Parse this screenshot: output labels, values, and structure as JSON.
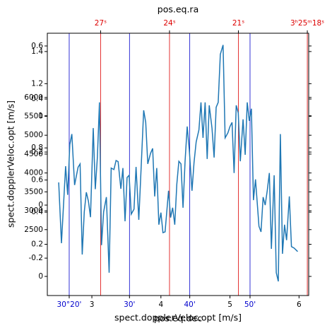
{
  "chart_data": {
    "type": "line",
    "title": "pos.eq.ra",
    "xlabel": "spect.dopplerVeloc.opt [m/s]",
    "xlabel2": "pos.eq.dec",
    "ylabel": "spect.dopplerVeloc.opt [m/s]",
    "color": "#1f77b4",
    "x": [
      2.52,
      2.56,
      2.62,
      2.65,
      2.68,
      2.71,
      2.75,
      2.8,
      2.83,
      2.86,
      2.89,
      2.92,
      2.95,
      2.98,
      3.02,
      3.05,
      3.08,
      3.11,
      3.14,
      3.17,
      3.21,
      3.25,
      3.28,
      3.32,
      3.35,
      3.38,
      3.42,
      3.45,
      3.48,
      3.51,
      3.54,
      3.57,
      3.61,
      3.64,
      3.68,
      3.72,
      3.75,
      3.78,
      3.81,
      3.85,
      3.88,
      3.91,
      3.94,
      3.97,
      4.0,
      4.03,
      4.06,
      4.11,
      4.14,
      4.17,
      4.2,
      4.23,
      4.26,
      4.29,
      4.32,
      4.35,
      4.38,
      4.41,
      4.45,
      4.48,
      4.51,
      4.55,
      4.58,
      4.61,
      4.64,
      4.67,
      4.7,
      4.74,
      4.77,
      4.8,
      4.83,
      4.86,
      4.9,
      4.93,
      4.97,
      5.0,
      5.03,
      5.06,
      5.09,
      5.12,
      5.15,
      5.19,
      5.22,
      5.25,
      5.28,
      5.31,
      5.34,
      5.37,
      5.42,
      5.45,
      5.48,
      5.51,
      5.54,
      5.57,
      5.6,
      5.64,
      5.67,
      5.7,
      5.73,
      5.76,
      5.79,
      5.82,
      5.86,
      5.89,
      5.93,
      5.98
    ],
    "values": [
      3750,
      2140,
      4180,
      3420,
      4750,
      5030,
      3680,
      4150,
      4240,
      1840,
      2970,
      3490,
      3250,
      2830,
      5190,
      3570,
      4430,
      5870,
      2090,
      2970,
      3360,
      1360,
      4130,
      4090,
      4330,
      4300,
      3580,
      4130,
      2720,
      3880,
      3940,
      2910,
      3040,
      4160,
      2760,
      4390,
      5660,
      5340,
      4240,
      4520,
      4650,
      3380,
      4130,
      2630,
      2950,
      2420,
      2440,
      3530,
      2820,
      3080,
      2630,
      3700,
      4310,
      4240,
      3080,
      4310,
      5230,
      4630,
      3530,
      4280,
      4820,
      5140,
      5870,
      4930,
      5870,
      4370,
      5790,
      5190,
      4410,
      5740,
      5870,
      7140,
      7390,
      4930,
      5060,
      5230,
      5340,
      4000,
      5790,
      5590,
      4310,
      5420,
      4480,
      5870,
      5380,
      5700,
      3280,
      3830,
      2590,
      2440,
      3360,
      3150,
      3530,
      4000,
      1990,
      3940,
      1360,
      1130,
      5030,
      1860,
      2630,
      2220,
      3380,
      2050,
      2010,
      1920
    ],
    "xlim": [
      2.355,
      6.14
    ],
    "xticks": [
      3,
      4,
      5,
      6
    ],
    "ylim": [
      755,
      7700
    ],
    "yticks": [
      2500,
      3000,
      3500,
      4000,
      4500,
      5000,
      5500,
      6000
    ],
    "y_axes_extra": [
      {
        "ylim": [
          -0.119,
          1.514
        ],
        "yticks": [
          0.0,
          0.2,
          0.4,
          0.6,
          0.8,
          1.0,
          1.2,
          1.4
        ]
      },
      {
        "ylim": [
          -0.341,
          0.648
        ],
        "yticks": [
          -0.2,
          0.0,
          0.2,
          0.4,
          0.6
        ]
      }
    ],
    "dec_axis": {
      "color": "#0000cc",
      "xlim": [
        16.37,
        59.73
      ],
      "xticks": [
        {
          "value": 20,
          "label": "30°20'"
        },
        {
          "value": 30,
          "label": "30'"
        },
        {
          "value": 40,
          "label": "40'"
        },
        {
          "value": 50,
          "label": "50'"
        }
      ]
    },
    "ra_axis": {
      "color": "#dd0000",
      "xlim": [
        29.32,
        17.94
      ],
      "xticks": [
        {
          "value": 27,
          "label": "27ˢ"
        },
        {
          "value": 24,
          "label": "24ˢ"
        },
        {
          "value": 21,
          "label": "21ˢ"
        },
        {
          "value": 18,
          "label": "3ʰ25ᵐ18ˢ"
        }
      ]
    }
  }
}
